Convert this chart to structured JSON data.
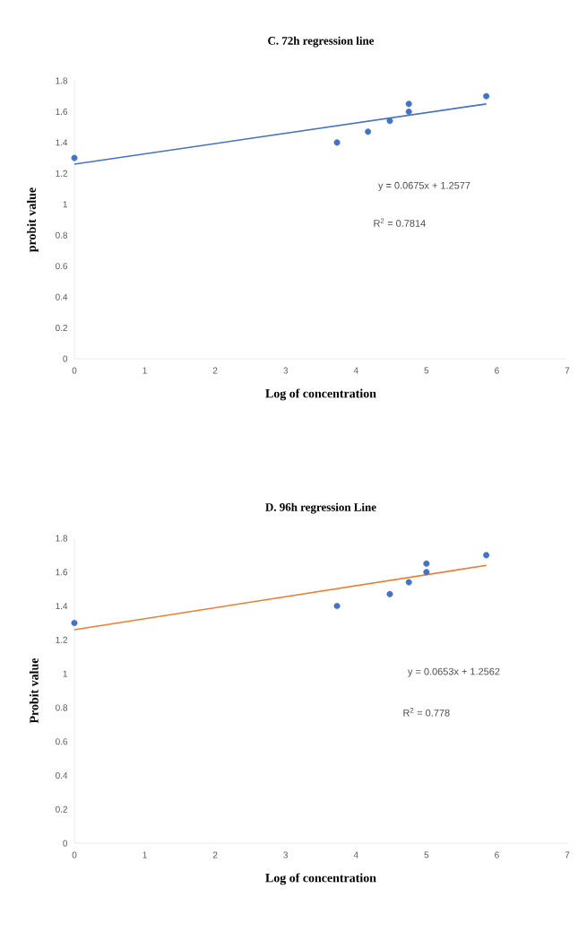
{
  "chart_data": [
    {
      "type": "scatter",
      "title": "C. 72h regression line",
      "xlabel": "Log of concentration",
      "ylabel": "probit value",
      "annotations": [
        "y = 0.0675x + 1.2577",
        "R$^{2}$ = 0.7814"
      ],
      "series": [
        {
          "marker": "circle",
          "color": "#4472c4",
          "x": [
            0,
            3.73,
            4.17,
            4.48,
            4.75,
            4.75,
            5.85
          ],
          "values": [
            1.3,
            1.4,
            1.47,
            1.54,
            1.65,
            1.6,
            1.7
          ]
        },
        {
          "type": "line",
          "marker": "none",
          "color": "#4472c4",
          "x": [
            0,
            5.85
          ],
          "values": [
            1.26,
            1.65
          ]
        }
      ],
      "xlim": [
        0,
        7
      ],
      "ylim": [
        0,
        1.8
      ],
      "xticks": [
        0,
        1,
        2,
        3,
        4,
        5,
        6,
        7
      ],
      "yticks": [
        0,
        0.2,
        0.4,
        0.6,
        0.8,
        1,
        1.2,
        1.4,
        1.6,
        1.8
      ],
      "grid": false
    },
    {
      "type": "scatter",
      "title": "D. 96h regression Line",
      "xlabel": "Log of concentration",
      "ylabel": "Probit value",
      "annotations": [
        "y = 0.0653x + 1.2562",
        "R$^{2}$ = 0.778"
      ],
      "series": [
        {
          "marker": "circle",
          "color": "#4472c4",
          "x": [
            0,
            3.73,
            4.48,
            4.75,
            5.0,
            5.0,
            5.85
          ],
          "values": [
            1.3,
            1.4,
            1.47,
            1.54,
            1.6,
            1.65,
            1.7
          ]
        },
        {
          "type": "line",
          "marker": "none",
          "color": "#ed7d31",
          "x": [
            0,
            5.85
          ],
          "values": [
            1.26,
            1.64
          ]
        }
      ],
      "xlim": [
        0,
        7
      ],
      "ylim": [
        0,
        1.8
      ],
      "xticks": [
        0,
        1,
        2,
        3,
        4,
        5,
        6,
        7
      ],
      "yticks": [
        0,
        0.2,
        0.4,
        0.6,
        0.8,
        1,
        1.2,
        1.4,
        1.6,
        1.8
      ],
      "grid": false
    }
  ]
}
